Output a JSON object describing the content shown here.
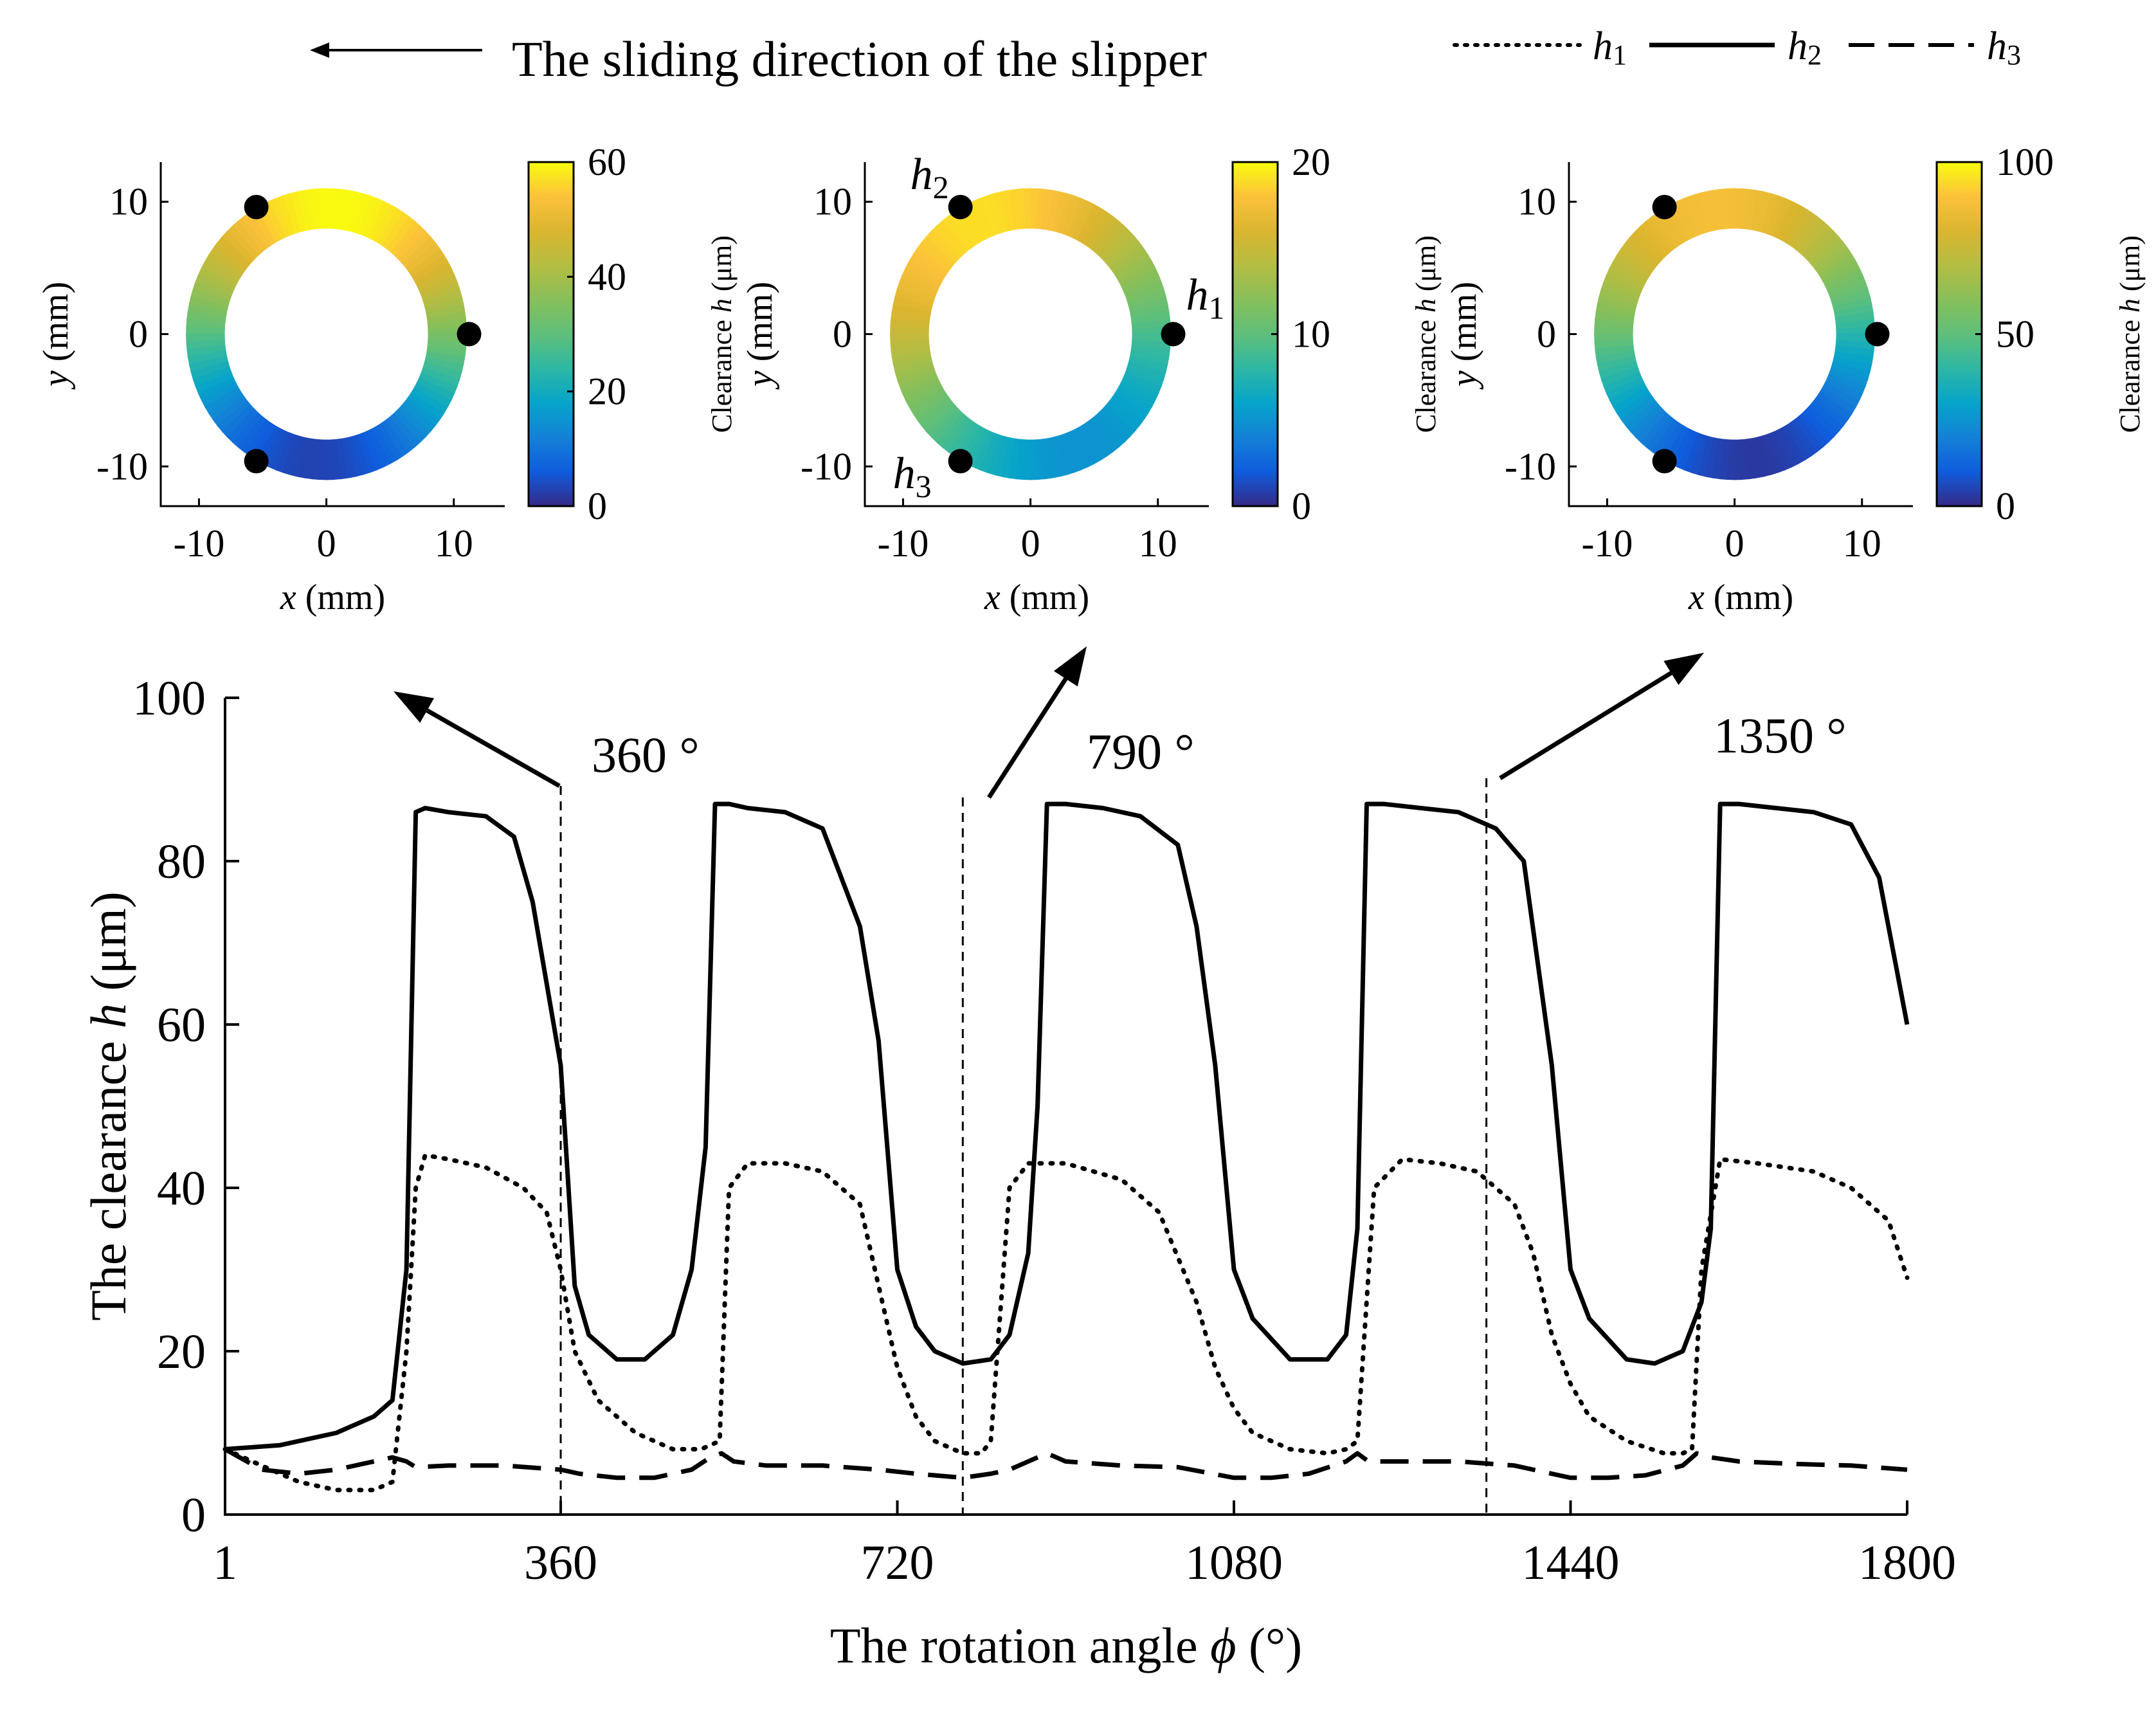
{
  "chart_data": [
    {
      "type": "line",
      "xlabel": "The rotation angle ϕ (°)",
      "ylabel": "The clearance h (μm)",
      "xlim": [
        1,
        1800
      ],
      "ylim": [
        0,
        100
      ],
      "xticks": [
        "1",
        "360",
        "720",
        "1080",
        "1440",
        "1800"
      ],
      "xtick_values": [
        1,
        360,
        720,
        1080,
        1440,
        1800
      ],
      "yticks": [
        "0",
        "20",
        "40",
        "60",
        "80",
        "100"
      ],
      "ytick_values": [
        0,
        20,
        40,
        60,
        80,
        100
      ],
      "legend": {
        "placement": "top-right",
        "entries": [
          "h1",
          "h2",
          "h3"
        ]
      },
      "annotations": [
        {
          "text": "360 °",
          "x": 360
        },
        {
          "text": "790 °",
          "x": 790
        },
        {
          "text": "1350 °",
          "x": 1350
        }
      ],
      "top_note": "The sliding direction of the slipper",
      "series": [
        {
          "name": "h1",
          "style": "dotted",
          "x": [
            1,
            40,
            80,
            120,
            160,
            180,
            195,
            205,
            215,
            240,
            280,
            320,
            345,
            360,
            375,
            400,
            440,
            480,
            510,
            530,
            540,
            560,
            600,
            640,
            680,
            700,
            720,
            740,
            760,
            790,
            810,
            820,
            840,
            860,
            900,
            960,
            1000,
            1040,
            1060,
            1080,
            1100,
            1140,
            1180,
            1200,
            1212,
            1230,
            1260,
            1300,
            1340,
            1380,
            1400,
            1420,
            1440,
            1460,
            1500,
            1540,
            1560,
            1570,
            1580,
            1600,
            1640,
            1700,
            1740,
            1780,
            1800
          ],
          "y": [
            8,
            6,
            4,
            3,
            3,
            4,
            20,
            40,
            44,
            43.5,
            42.5,
            40,
            37,
            30,
            20,
            14,
            10,
            8,
            8,
            9,
            40,
            43,
            43,
            42,
            38,
            28,
            18,
            12,
            9,
            7.5,
            7.5,
            9,
            40,
            43,
            43,
            41,
            37,
            26,
            18,
            13,
            10,
            8,
            7.5,
            8,
            9,
            40,
            43.5,
            43,
            42,
            38,
            32,
            22,
            16,
            12,
            9,
            7.5,
            7.5,
            8,
            30,
            43.5,
            43,
            42,
            40,
            36,
            29
          ]
        },
        {
          "name": "h2",
          "style": "solid",
          "x": [
            1,
            60,
            120,
            160,
            180,
            195,
            205,
            215,
            240,
            280,
            310,
            330,
            345,
            360,
            375,
            390,
            420,
            450,
            480,
            500,
            515,
            525,
            540,
            560,
            600,
            640,
            680,
            700,
            720,
            740,
            760,
            790,
            820,
            840,
            860,
            870,
            880,
            900,
            940,
            980,
            1020,
            1040,
            1060,
            1080,
            1100,
            1140,
            1180,
            1200,
            1212,
            1222,
            1240,
            1280,
            1320,
            1360,
            1390,
            1420,
            1440,
            1460,
            1500,
            1530,
            1560,
            1580,
            1590,
            1600,
            1620,
            1660,
            1700,
            1740,
            1770,
            1800
          ],
          "y": [
            8,
            8.5,
            10,
            12,
            14,
            30,
            86,
            86.5,
            86,
            85.5,
            83,
            75,
            65,
            55,
            28,
            22,
            19,
            19,
            22,
            30,
            45,
            87,
            87,
            86.5,
            86,
            84,
            72,
            58,
            30,
            23,
            20,
            18.5,
            19,
            22,
            32,
            50,
            87,
            87,
            86.5,
            85.5,
            82,
            72,
            55,
            30,
            24,
            19,
            19,
            22,
            35,
            87,
            87,
            86.5,
            86,
            84,
            80,
            55,
            30,
            24,
            19,
            18.5,
            20,
            26,
            35,
            87,
            87,
            86.5,
            86,
            84.5,
            78,
            60
          ]
        },
        {
          "name": "h3",
          "style": "dashed",
          "x": [
            1,
            40,
            80,
            120,
            160,
            180,
            195,
            205,
            240,
            300,
            360,
            380,
            420,
            460,
            500,
            520,
            532,
            545,
            580,
            640,
            700,
            740,
            790,
            820,
            840,
            860,
            880,
            900,
            960,
            1020,
            1080,
            1120,
            1160,
            1200,
            1212,
            1224,
            1260,
            1320,
            1380,
            1420,
            1440,
            1480,
            1520,
            1560,
            1575,
            1590,
            1620,
            1680,
            1740,
            1800
          ],
          "y": [
            8,
            5.5,
            5,
            5.5,
            6.5,
            7,
            6.5,
            5.8,
            6,
            6,
            5.5,
            5,
            4.5,
            4.5,
            5.5,
            7,
            7.5,
            6.5,
            6,
            6,
            5.5,
            5,
            4.5,
            5,
            5.5,
            6.5,
            7.5,
            6.5,
            6,
            5.8,
            4.5,
            4.5,
            5,
            6.5,
            7.5,
            6.5,
            6.5,
            6.5,
            6,
            5,
            4.5,
            4.5,
            4.8,
            6,
            7.5,
            7,
            6.5,
            6.2,
            6,
            5.5
          ]
        }
      ]
    },
    {
      "type": "heatmap",
      "panel": "360 °",
      "xlabel": "x (mm)",
      "ylabel": "y (mm)",
      "xlim": [
        -13,
        14
      ],
      "ylim": [
        -13,
        13
      ],
      "xticks": [
        "-10",
        "0",
        "10"
      ],
      "xtick_values": [
        -10,
        0,
        10
      ],
      "yticks": [
        "-10",
        "0",
        "10"
      ],
      "ytick_values": [
        -10,
        0,
        10
      ],
      "ring": {
        "inner_radius": 8,
        "outer_radius": 11
      },
      "probe_points": [
        {
          "label": "h1",
          "x": 11.2,
          "y": 0
        },
        {
          "label": "h2",
          "x": -5.5,
          "y": 9.6
        },
        {
          "label": "h3",
          "x": -5.5,
          "y": -9.6
        }
      ],
      "colorbar": {
        "label": "Clearance h (μm)",
        "range": [
          0,
          60
        ],
        "ticks": [
          "0",
          "20",
          "40",
          "60"
        ],
        "tick_values": [
          0,
          20,
          40,
          60
        ]
      },
      "gradient_angle_deg": 85,
      "clearance_min": 3,
      "clearance_max": 60
    },
    {
      "type": "heatmap",
      "panel": "790 °",
      "xlabel": "x (mm)",
      "ylabel": "y (mm)",
      "xlim": [
        -13,
        14
      ],
      "ylim": [
        -13,
        13
      ],
      "xticks": [
        "-10",
        "0",
        "10"
      ],
      "xtick_values": [
        -10,
        0,
        10
      ],
      "yticks": [
        "-10",
        "0",
        "10"
      ],
      "ytick_values": [
        -10,
        0,
        10
      ],
      "ring": {
        "inner_radius": 8,
        "outer_radius": 11
      },
      "probe_points": [
        {
          "label": "h1",
          "x": 11.2,
          "y": 0,
          "shown_label": "h1"
        },
        {
          "label": "h2",
          "x": -5.5,
          "y": 9.6,
          "shown_label": "h2"
        },
        {
          "label": "h3",
          "x": -5.5,
          "y": -9.6,
          "shown_label": "h3"
        }
      ],
      "colorbar": {
        "label": "Clearance h (μm)",
        "range": [
          0,
          20
        ],
        "ticks": [
          "0",
          "10",
          "20"
        ],
        "tick_values": [
          0,
          10,
          20
        ]
      },
      "gradient_angle_deg": 115,
      "clearance_min": 5,
      "clearance_max": 19
    },
    {
      "type": "heatmap",
      "panel": "1350 °",
      "xlabel": "x (mm)",
      "ylabel": "y (mm)",
      "xlim": [
        -13,
        14
      ],
      "ylim": [
        -13,
        13
      ],
      "xticks": [
        "-10",
        "0",
        "10"
      ],
      "xtick_values": [
        -10,
        0,
        10
      ],
      "yticks": [
        "-10",
        "0",
        "10"
      ],
      "ytick_values": [
        -10,
        0,
        10
      ],
      "ring": {
        "inner_radius": 8,
        "outer_radius": 11
      },
      "probe_points": [
        {
          "label": "h1",
          "x": 11.2,
          "y": 0
        },
        {
          "label": "h2",
          "x": -5.5,
          "y": 9.6
        },
        {
          "label": "h3",
          "x": -5.5,
          "y": -9.6
        }
      ],
      "colorbar": {
        "label": "Clearance h (μm)",
        "range": [
          0,
          100
        ],
        "ticks": [
          "0",
          "50",
          "100"
        ],
        "tick_values": [
          0,
          50,
          100
        ]
      },
      "gradient_angle_deg": 100,
      "clearance_min": 3,
      "clearance_max": 88
    }
  ]
}
